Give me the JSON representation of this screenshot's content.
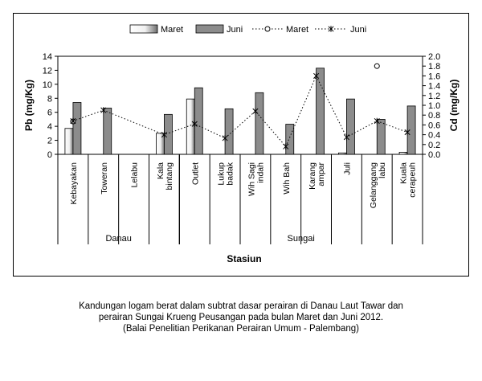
{
  "chart_data": {
    "type": "bar",
    "categories": [
      "Kebayakan",
      "Toweran",
      "Lelabu",
      "Kala bintang",
      "Outlet",
      "Lukup badak",
      "Wih Sagi indah",
      "Wih Bah",
      "Karang ampar",
      "Juli",
      "Gelanggang labu",
      "Kuala cerapeuh"
    ],
    "category_lines": [
      [
        "Kebayakan"
      ],
      [
        "Toweran"
      ],
      [
        "Lelabu"
      ],
      [
        "Kala",
        "bintang"
      ],
      [
        "Outlet"
      ],
      [
        "Lukup",
        "badak"
      ],
      [
        "Wih Sagi",
        "indah"
      ],
      [
        "Wih Bah"
      ],
      [
        "Karang",
        "ampar"
      ],
      [
        "Juli"
      ],
      [
        "Gelanggang",
        "labu"
      ],
      [
        "Kuala",
        "cerapeuh"
      ]
    ],
    "groups": [
      {
        "label": "Danau",
        "start": 0,
        "end": 3
      },
      {
        "label": "Sungai",
        "start": 4,
        "end": 11
      }
    ],
    "series": [
      {
        "name": "Maret",
        "type": "bar",
        "axis": "left",
        "values": [
          3.7,
          0,
          0,
          3.0,
          7.9,
          0,
          0,
          0,
          0,
          0.2,
          0,
          0.3
        ]
      },
      {
        "name": "Juni",
        "type": "bar",
        "axis": "left",
        "values": [
          7.4,
          6.6,
          0,
          5.7,
          9.5,
          6.5,
          8.8,
          4.3,
          12.3,
          7.9,
          5.0,
          6.9
        ]
      },
      {
        "name": "Maret",
        "type": "line",
        "axis": "right",
        "marker": "circle",
        "values": [
          0.67,
          null,
          null,
          null,
          null,
          null,
          null,
          null,
          null,
          null,
          1.8,
          null
        ]
      },
      {
        "name": "Juni",
        "type": "line",
        "axis": "right",
        "marker": "star",
        "values": [
          0.68,
          0.9,
          null,
          0.4,
          0.62,
          0.33,
          0.88,
          0.16,
          1.6,
          0.35,
          0.68,
          0.45
        ]
      }
    ],
    "ylabel": "Pb (mg/Kg)",
    "ylabel_right": "Cd (mg/Kg)",
    "xlabel": "Stasiun",
    "ylim": [
      0,
      14
    ],
    "yticks": [
      "0",
      "2",
      "4",
      "6",
      "8",
      "10",
      "12",
      "14"
    ],
    "ylim_right": [
      0,
      2.0
    ],
    "yticks_right": [
      "0.0",
      "0.2",
      "0.4",
      "0.6",
      "0.8",
      "1.0",
      "1.2",
      "1.4",
      "1.6",
      "1.8",
      "2.0"
    ],
    "legend_position": "top",
    "colors": {
      "bar_maret": "#f0f0f0",
      "bar_juni": "#8c8c8c",
      "line": "#000000"
    }
  },
  "caption": {
    "line1": "Kandungan logam berat  dalam subtrat dasar perairan di Danau Laut Tawar dan",
    "line2": "perairan Sungai Krueng Peusangan pada bulan Maret dan Juni   2012.",
    "line3": "(Balai Penelitian Perikanan Perairan Umum - Palembang)"
  }
}
